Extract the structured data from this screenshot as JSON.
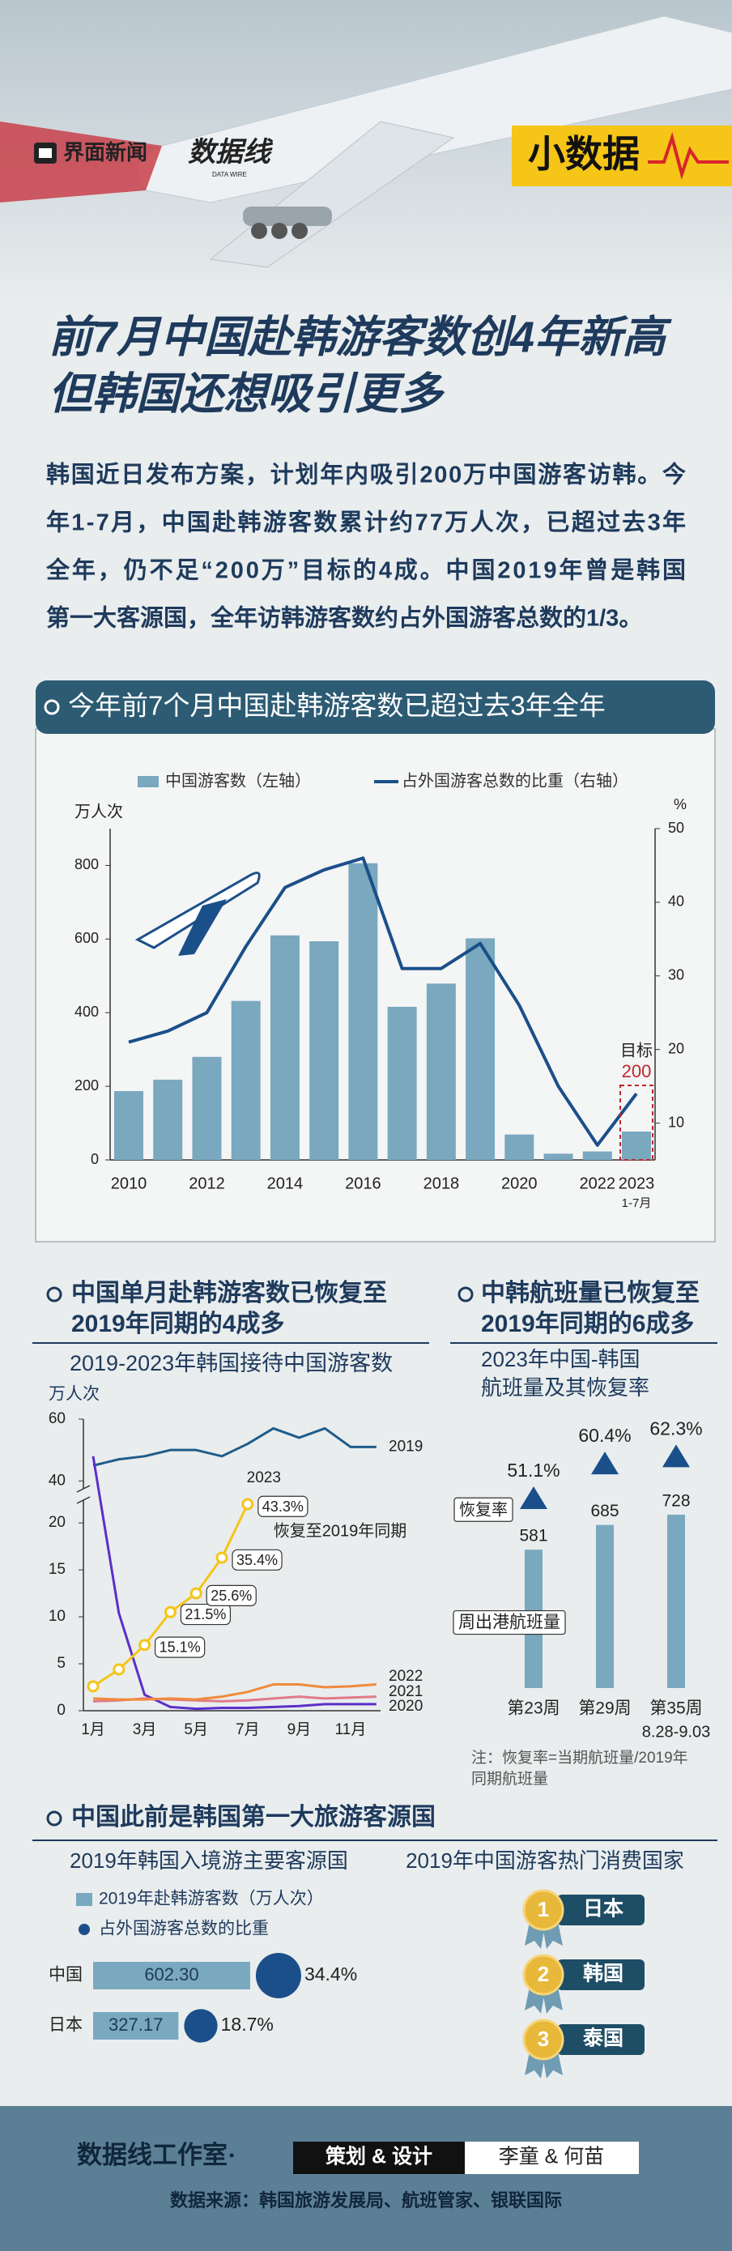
{
  "header": {
    "brand": "界面新闻",
    "brand2": "数据线",
    "brand2_sub": "DATA WIRE",
    "column": "小数据"
  },
  "title": [
    "前7月中国赴韩游客数创4年新高",
    "但韩国还想吸引更多"
  ],
  "intro": [
    "韩国近日发布方案，计划年内吸引200万中国游客访韩。今",
    "年1-7月，中国赴韩游客数累计约77万人次，已超过去3年",
    "全年，仍不足“200万”目标的4成。中国2019年曾是韩国",
    "第一大客源国，全年访韩游客数约占外国游客总数的1/3。"
  ],
  "chart_data": [
    {
      "type": "bar_line",
      "section": "今年前7个月中国赴韩游客数已超过去3年全年",
      "categories": [
        "2010",
        null,
        "2012",
        null,
        "2014",
        null,
        "2016",
        null,
        "2018",
        null,
        "2020",
        null,
        "2022",
        "2023"
      ],
      "category_note": "1-7月",
      "y_label": "万人次",
      "y2_label": "%",
      "ylim": [
        0,
        900
      ],
      "yticks": [
        0,
        200,
        400,
        600,
        800
      ],
      "y2lim": [
        5,
        50
      ],
      "y2ticks": [
        10,
        20,
        30,
        40,
        50
      ],
      "series": [
        {
          "name": "中国游客数（左轴）",
          "type": "bar",
          "color": "#7aa8bf",
          "values": [
            187,
            218,
            280,
            432,
            610,
            594,
            806,
            416,
            479,
            602,
            69,
            17,
            23,
            77
          ]
        },
        {
          "name": "占外国游客总数的比重（右轴）",
          "type": "line",
          "axis": "y2",
          "color": "#1b4f8a",
          "values": [
            21,
            22.5,
            25,
            34,
            42,
            44.4,
            46,
            31,
            31,
            34.4,
            26,
            15,
            7,
            14
          ]
        }
      ],
      "target_label": "目标",
      "target": 200
    },
    {
      "type": "line",
      "section": [
        "中国单月赴韩游客数已恢复至",
        "2019年同期的4成多"
      ],
      "subtitle": "2019-2023年韩国接待中国游客数",
      "y_label": "万人次",
      "categories": [
        "1月",
        null,
        "3月",
        null,
        "5月",
        null,
        "7月",
        null,
        "9月",
        null,
        "11月",
        null
      ],
      "ylim": [
        0,
        60
      ],
      "axis_break": [
        22,
        38
      ],
      "yticks": [
        0,
        5,
        10,
        15,
        20,
        40,
        60
      ],
      "series": [
        {
          "name": "2019",
          "color": "#1f5c8a",
          "values": [
            45,
            47,
            48,
            50,
            50,
            48,
            52,
            57,
            54,
            57,
            51,
            51
          ]
        },
        {
          "name": "2020",
          "color": "#5b2fc9",
          "values": [
            48,
            10.4,
            1.7,
            0.4,
            0.2,
            0.3,
            0.3,
            0.4,
            0.5,
            0.7,
            0.7,
            0.7
          ]
        },
        {
          "name": "2021",
          "color": "#e07b8a",
          "values": [
            1,
            1.1,
            1.3,
            1.2,
            1.1,
            1,
            1.1,
            1.3,
            1.5,
            1.3,
            1.4,
            1.5
          ]
        },
        {
          "name": "2022",
          "color": "#f08a3c",
          "values": [
            1.3,
            1.2,
            1.2,
            1.3,
            1.2,
            1.5,
            2,
            2.8,
            2.8,
            2.5,
            2.6,
            2.8
          ]
        },
        {
          "name": "2023",
          "color": "#f5c518",
          "values": [
            2.6,
            4.4,
            7,
            10.5,
            12.5,
            16.3,
            22,
            null,
            null,
            null,
            null,
            null
          ]
        }
      ],
      "recovery_labels": [
        null,
        null,
        "15.1%",
        "21.5%",
        "25.6%",
        "35.4%",
        "43.3%",
        null,
        null,
        null,
        null,
        null
      ],
      "annotation": "恢复至2019年同期"
    },
    {
      "type": "bar",
      "section": [
        "中韩航班量已恢复至",
        "2019年同期的6成多"
      ],
      "subtitle": [
        "2023年中国-韩国",
        "航班量及其恢复率"
      ],
      "categories": [
        "第23周",
        "第29周",
        "第35周"
      ],
      "category_note": "8.28-9.03",
      "series": [
        {
          "name": "周出港航班量",
          "color": "#7aa8bf",
          "values": [
            581,
            685,
            728
          ]
        },
        {
          "name": "恢复率",
          "color": "#1b4f8a",
          "values": [
            51.1,
            60.4,
            62.3
          ],
          "value_labels": [
            "51.1%",
            "60.4%",
            "62.3%"
          ]
        }
      ],
      "note": [
        "注：恢复率=当期航班量/2019年",
        "同期航班量"
      ]
    },
    {
      "type": "hbar",
      "section": "中国此前是韩国第一大旅游客源国",
      "subtitle": "2019年韩国入境游主要客源国",
      "categories": [
        "中国",
        "日本"
      ],
      "series": [
        {
          "name": "2019年赴韩游客数（万人次）",
          "color": "#7aa8bf",
          "values": [
            602.3,
            327.17
          ],
          "value_labels": [
            "602.30",
            "327.17"
          ]
        },
        {
          "name": "占外国游客总数的比重",
          "color": "#1b4f8a",
          "values": [
            34.4,
            18.7
          ],
          "value_labels": [
            "34.4%",
            "18.7%"
          ]
        }
      ]
    }
  ],
  "ranking": {
    "title": "2019年中国游客热门消费国家",
    "ranks": [
      1,
      2,
      3
    ],
    "items": [
      "日本",
      "韩国",
      "泰国"
    ]
  },
  "footer": {
    "studio": "数据线工作室·",
    "role": "策划 & 设计",
    "authors": "李童 & 何苗",
    "source": "数据来源：韩国旅游发展局、航班管家、银联国际"
  }
}
